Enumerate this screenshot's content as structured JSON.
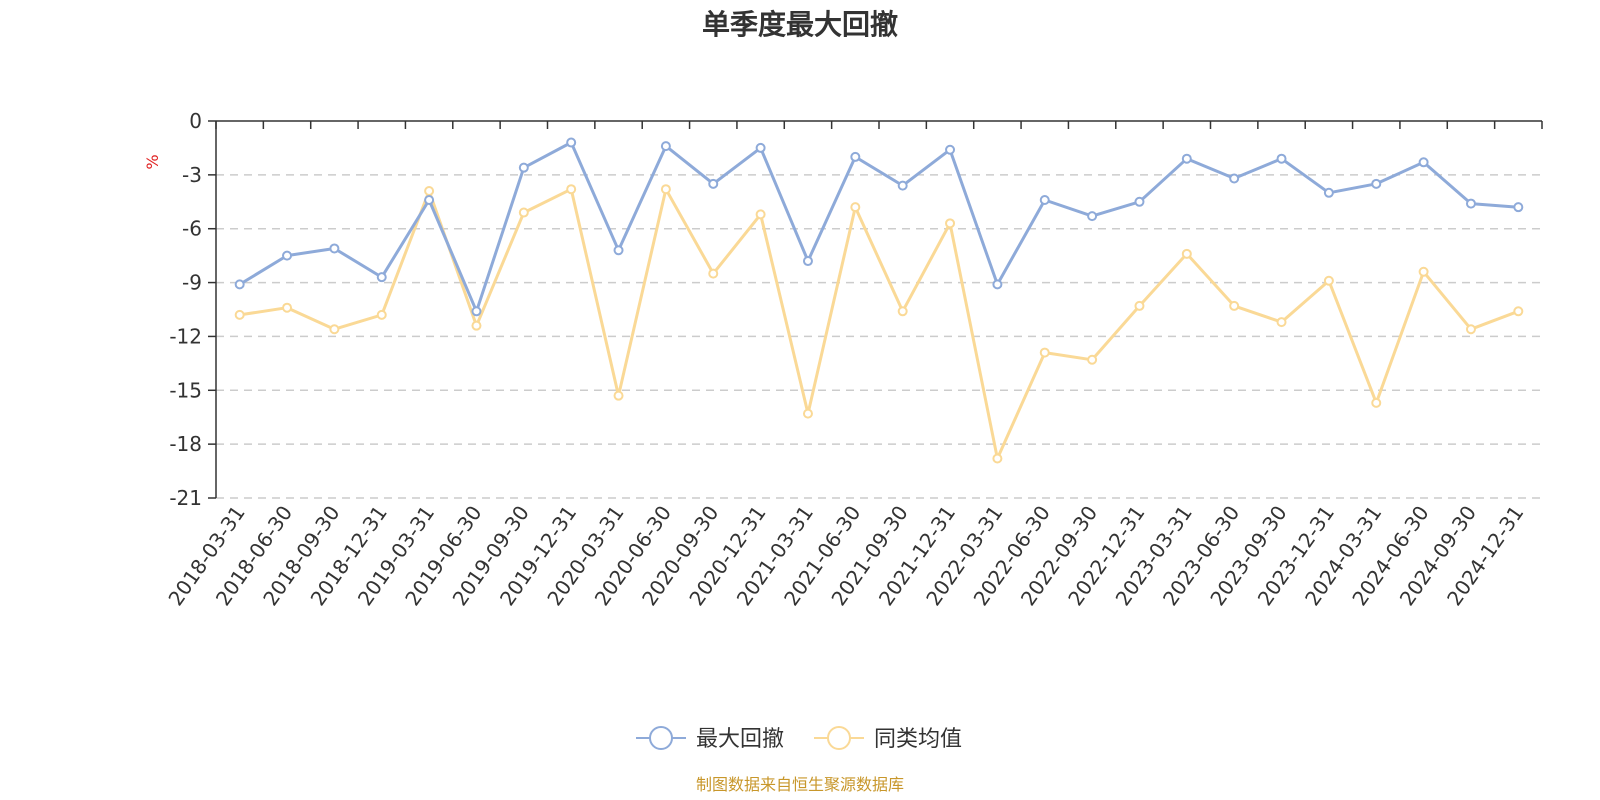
{
  "chart_data": {
    "type": "line",
    "title": "单季度最大回撤",
    "ylabel": "%",
    "ylim": [
      -21,
      0
    ],
    "yticks": [
      0,
      -3,
      -6,
      -9,
      -12,
      -15,
      -18,
      -21
    ],
    "categories": [
      "2018-03-31",
      "2018-06-30",
      "2018-09-30",
      "2018-12-31",
      "2019-03-31",
      "2019-06-30",
      "2019-09-30",
      "2019-12-31",
      "2020-03-31",
      "2020-06-30",
      "2020-09-30",
      "2020-12-31",
      "2021-03-31",
      "2021-06-30",
      "2021-09-30",
      "2021-12-31",
      "2022-03-31",
      "2022-06-30",
      "2022-09-30",
      "2022-12-31",
      "2023-03-31",
      "2023-06-30",
      "2023-09-30",
      "2023-12-31",
      "2024-03-31",
      "2024-06-30",
      "2024-09-30",
      "2024-12-31"
    ],
    "series": [
      {
        "name": "最大回撤",
        "color": "#8eaad9",
        "values": [
          -9.1,
          -7.5,
          -7.1,
          -8.7,
          -4.4,
          -10.6,
          -2.6,
          -1.2,
          -7.2,
          -1.4,
          -3.5,
          -1.5,
          -7.8,
          -2.0,
          -3.6,
          -1.6,
          -9.1,
          -4.4,
          -5.3,
          -4.5,
          -2.1,
          -3.2,
          -2.1,
          -4.0,
          -3.5,
          -2.3,
          -4.6,
          -4.8
        ]
      },
      {
        "name": "同类均值",
        "color": "#fad996",
        "values": [
          -10.8,
          -10.4,
          -11.6,
          -10.8,
          -3.9,
          -11.4,
          -5.1,
          -3.8,
          -15.3,
          -3.8,
          -8.5,
          -5.2,
          -16.3,
          -4.8,
          -10.6,
          -5.7,
          -18.8,
          -12.9,
          -13.3,
          -10.3,
          -7.4,
          -10.3,
          -11.2,
          -8.9,
          -15.7,
          -8.4,
          -11.6,
          -10.6
        ]
      }
    ],
    "legend": "bottom-center",
    "source": "制图数据来自恒生聚源数据库"
  }
}
